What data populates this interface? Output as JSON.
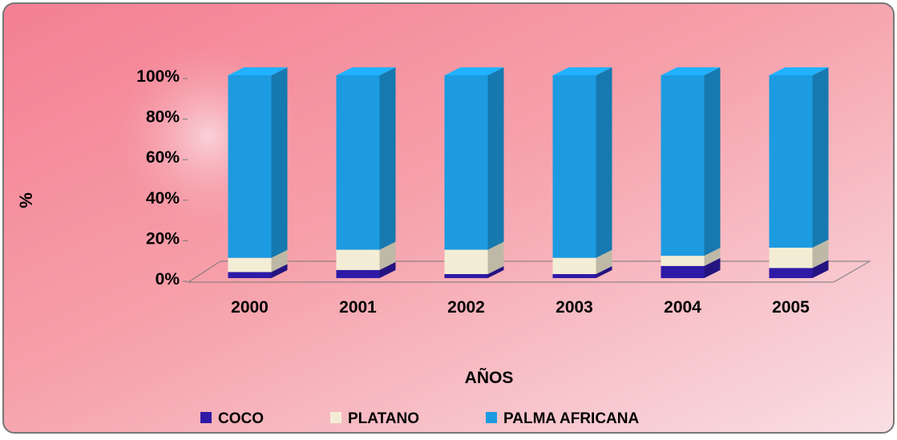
{
  "chart_data": {
    "type": "bar",
    "stacked": true,
    "y_axis_label": "%",
    "x_axis_label": "AÑOS",
    "categories": [
      "2000",
      "2001",
      "2002",
      "2003",
      "2004",
      "2005"
    ],
    "series": [
      {
        "name": "COCO",
        "color": "#2e1aa6",
        "values": [
          3,
          4,
          2,
          2,
          6,
          5
        ]
      },
      {
        "name": "PLATANO",
        "color": "#f4edd6",
        "values": [
          7,
          10,
          12,
          8,
          5,
          10
        ]
      },
      {
        "name": "PALMA AFRICANA",
        "color": "#1c9be0",
        "values": [
          90,
          86,
          86,
          90,
          89,
          85
        ]
      }
    ],
    "ylim": [
      0,
      100
    ],
    "yticks": [
      {
        "value": 0,
        "label": "0%"
      },
      {
        "value": 20,
        "label": "20%"
      },
      {
        "value": 40,
        "label": "40%"
      },
      {
        "value": 60,
        "label": "60%"
      },
      {
        "value": 80,
        "label": "80%"
      },
      {
        "value": 100,
        "label": "100%"
      }
    ],
    "legend": "bottom"
  }
}
